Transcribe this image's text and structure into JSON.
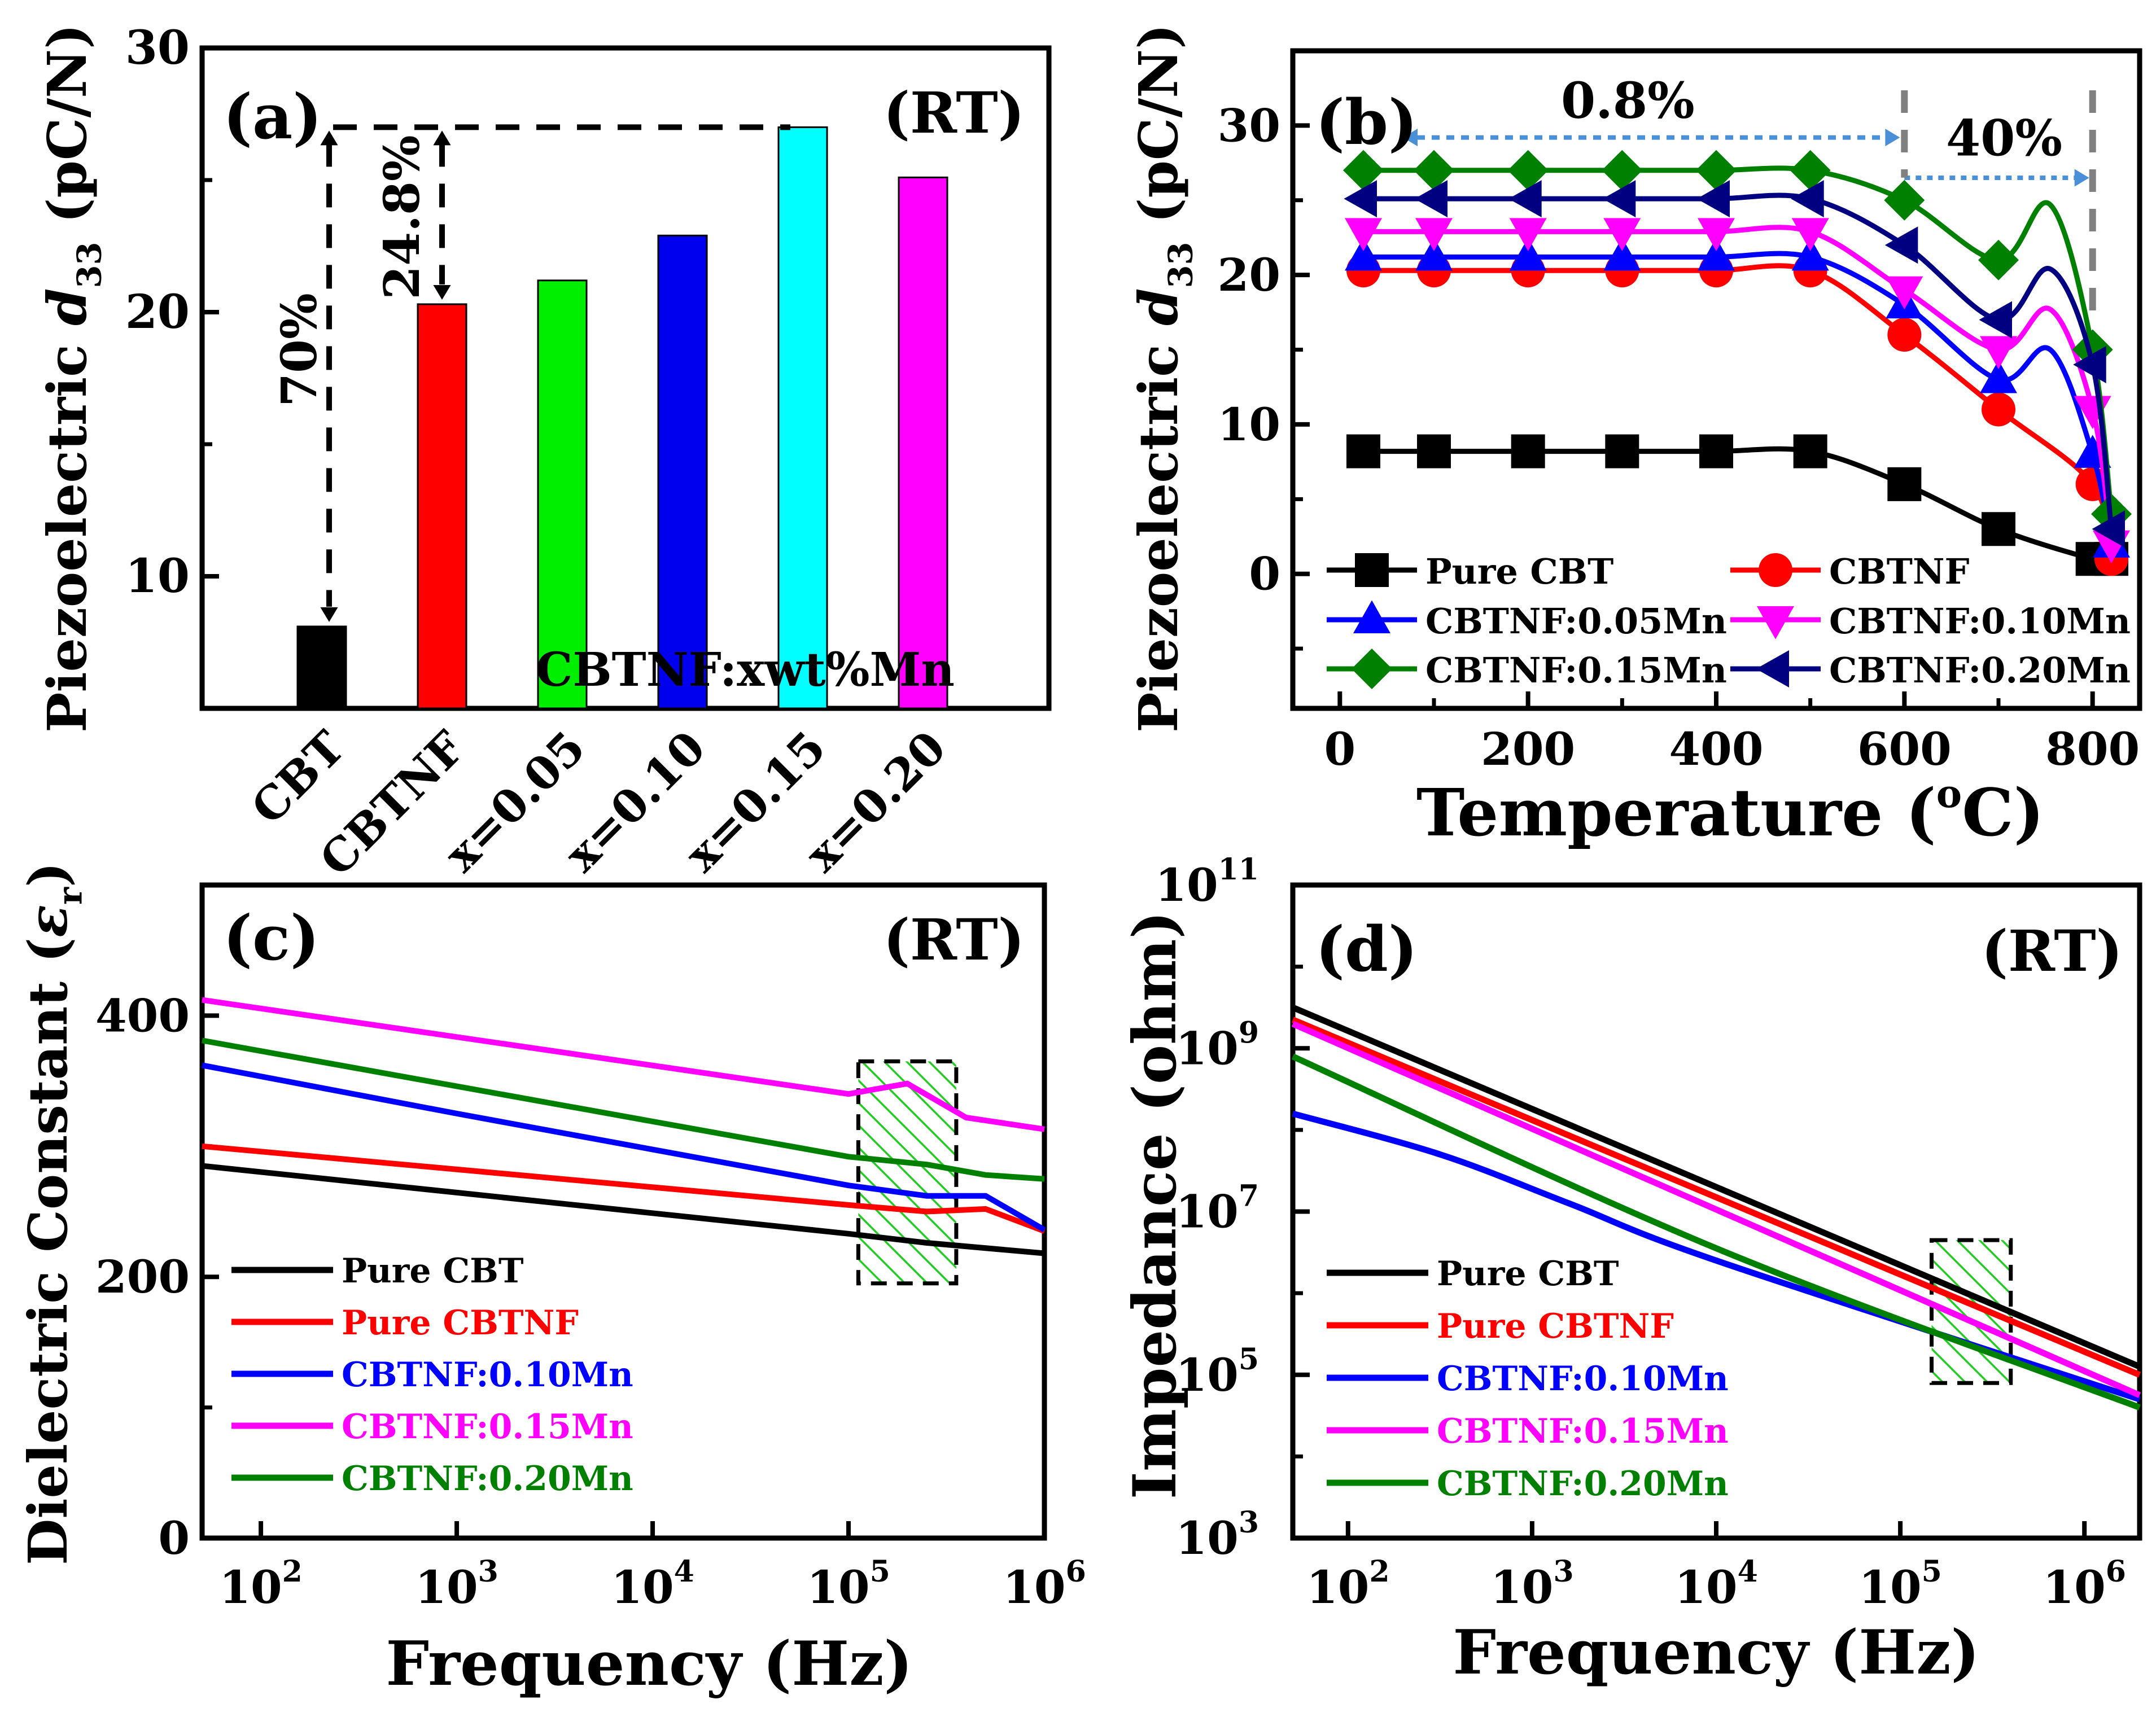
{
  "chart_data": [
    {
      "panel": "a",
      "type": "bar",
      "panel_label": "(a)",
      "condition": "(RT)",
      "ylabel_main": "Piezoelectric ",
      "ylabel_sym": "d",
      "ylabel_sub": "33",
      "ylabel_unit": " (pC/N)",
      "ylim": [
        5,
        30
      ],
      "yticks": [
        10,
        20,
        30
      ],
      "categories": [
        "CBT",
        "CBTNF",
        "x=0.05",
        "x=0.10",
        "x=0.15",
        "x=0.20"
      ],
      "values": [
        8.1,
        20.3,
        21.2,
        22.9,
        27.0,
        25.1
      ],
      "bar_colors": [
        "#000000",
        "#ff0000",
        "#00ee00",
        "#0000ee",
        "#00ffff",
        "#ff00ff"
      ],
      "annotations": {
        "pct_left": "70%",
        "pct_mid": "24.8%",
        "group_label": "CBTNF:xwt%Mn"
      }
    },
    {
      "panel": "b",
      "type": "line",
      "panel_label": "(b)",
      "xlabel": "Temperature (",
      "xlabel_sup": "o",
      "xlabel_end": "C)",
      "ylabel_main": "Piezoelectric ",
      "ylabel_sym": "d",
      "ylabel_sub": "33",
      "ylabel_unit": " (pC/N)",
      "xlim": [
        -50,
        850
      ],
      "ylim": [
        -9,
        35
      ],
      "xticks": [
        0,
        200,
        400,
        600,
        800
      ],
      "yticks": [
        0,
        10,
        20,
        30
      ],
      "annotations": {
        "left_pct": "0.8%",
        "right_pct": "40%"
      },
      "series": [
        {
          "name": "Pure CBT",
          "color": "#000000",
          "marker": "square",
          "x": [
            25,
            100,
            200,
            300,
            400,
            500,
            600,
            700,
            800,
            820
          ],
          "y": [
            8.2,
            8.2,
            8.2,
            8.2,
            8.2,
            8.2,
            6.0,
            3.0,
            1.0,
            1.0
          ]
        },
        {
          "name": "CBTNF",
          "color": "#ff0000",
          "marker": "circle",
          "x": [
            25,
            100,
            200,
            300,
            400,
            500,
            600,
            700,
            800,
            820
          ],
          "y": [
            20.3,
            20.3,
            20.3,
            20.3,
            20.3,
            20.3,
            16.0,
            11.0,
            6.0,
            1.0
          ]
        },
        {
          "name": "CBTNF:0.05Mn",
          "color": "#0000ff",
          "marker": "triangle-up",
          "x": [
            25,
            100,
            200,
            300,
            400,
            500,
            600,
            700,
            800,
            820
          ],
          "y": [
            21.2,
            21.2,
            21.2,
            21.2,
            21.2,
            21.2,
            18.0,
            13.0,
            8.0,
            2.0
          ]
        },
        {
          "name": "CBTNF:0.10Mn",
          "color": "#ff00ff",
          "marker": "triangle-down",
          "x": [
            25,
            100,
            200,
            300,
            400,
            500,
            600,
            700,
            800,
            820
          ],
          "y": [
            22.9,
            22.9,
            22.9,
            22.9,
            22.9,
            22.9,
            19.0,
            15.0,
            11.0,
            2.0
          ]
        },
        {
          "name": "CBTNF:0.15Mn",
          "color": "#008000",
          "marker": "diamond",
          "x": [
            25,
            100,
            200,
            300,
            400,
            500,
            600,
            700,
            800,
            820
          ],
          "y": [
            27.0,
            27.0,
            27.0,
            27.0,
            27.0,
            27.0,
            25.0,
            21.0,
            15.0,
            4.0
          ]
        },
        {
          "name": "CBTNF:0.20Mn",
          "color": "#000080",
          "marker": "triangle-left",
          "x": [
            25,
            100,
            200,
            300,
            400,
            500,
            600,
            700,
            800,
            820
          ],
          "y": [
            25.1,
            25.1,
            25.1,
            25.1,
            25.1,
            25.1,
            22.0,
            17.0,
            14.0,
            3.0
          ]
        }
      ]
    },
    {
      "panel": "c",
      "type": "line",
      "panel_label": "(c)",
      "condition": "(RT)",
      "xlabel": "Frequency (Hz)",
      "ylabel_main": "Dielectric Constant (",
      "ylabel_sym": "ε",
      "ylabel_sub": "r",
      "ylabel_unit": ")",
      "xscale": "log",
      "xlim_exp": [
        1.7,
        6.0
      ],
      "ylim": [
        0,
        500
      ],
      "xtick_exps": [
        2,
        3,
        4,
        5,
        6
      ],
      "tick_base": "10",
      "yticks": [
        0,
        200,
        400
      ],
      "series": [
        {
          "name": "Pure CBT",
          "color": "#000000",
          "logx": [
            1.7,
            5.0,
            5.4,
            6.0
          ],
          "y": [
            285,
            233,
            226,
            218
          ]
        },
        {
          "name": "Pure CBTNF",
          "color": "#ff0000",
          "logx": [
            1.7,
            5.0,
            5.4,
            5.7,
            6.0
          ],
          "y": [
            300,
            255,
            250,
            252,
            235
          ]
        },
        {
          "name": "CBTNF:0.10Mn",
          "color": "#0000ff",
          "logx": [
            1.7,
            3.0,
            5.0,
            5.4,
            5.7,
            6.0
          ],
          "y": [
            362,
            325,
            270,
            262,
            262,
            236
          ]
        },
        {
          "name": "CBTNF:0.15Mn",
          "color": "#ff00ff",
          "logx": [
            1.7,
            5.0,
            5.3,
            5.6,
            6.0
          ],
          "y": [
            412,
            340,
            348,
            322,
            313
          ]
        },
        {
          "name": "CBTNF:0.20Mn",
          "color": "#008000",
          "logx": [
            1.7,
            5.0,
            5.4,
            5.7,
            6.0
          ],
          "y": [
            381,
            292,
            286,
            278,
            275
          ]
        }
      ]
    },
    {
      "panel": "d",
      "type": "line",
      "panel_label": "(d)",
      "condition": "(RT)",
      "xlabel": "Frequency (Hz)",
      "ylabel": "Impedance (ohm)",
      "xscale": "log",
      "yscale": "log",
      "xlim_exp": [
        1.7,
        6.3
      ],
      "ylim_exp": [
        3,
        11
      ],
      "xtick_exps": [
        2,
        3,
        4,
        5,
        6
      ],
      "ytick_exps": [
        3,
        5,
        7,
        9,
        11
      ],
      "tick_base": "10",
      "series": [
        {
          "name": "Pure CBT",
          "color": "#000000",
          "logx": [
            1.7,
            6.3
          ],
          "logy": [
            9.5,
            5.1
          ]
        },
        {
          "name": "Pure CBTNF",
          "color": "#ff0000",
          "logx": [
            1.7,
            6.3
          ],
          "logy": [
            9.35,
            5.0
          ]
        },
        {
          "name": "CBTNF:0.10Mn",
          "color": "#0000ff",
          "logx": [
            1.7,
            2.5,
            3.2,
            4.0,
            6.3
          ],
          "logy": [
            8.2,
            7.7,
            7.1,
            6.4,
            4.7
          ]
        },
        {
          "name": "CBTNF:0.15Mn",
          "color": "#ff00ff",
          "logx": [
            1.7,
            6.3
          ],
          "logy": [
            9.3,
            4.75
          ]
        },
        {
          "name": "CBTNF:0.20Mn",
          "color": "#008000",
          "logx": [
            1.7,
            4.0,
            6.3
          ],
          "logy": [
            8.9,
            6.55,
            4.6
          ]
        }
      ]
    }
  ]
}
